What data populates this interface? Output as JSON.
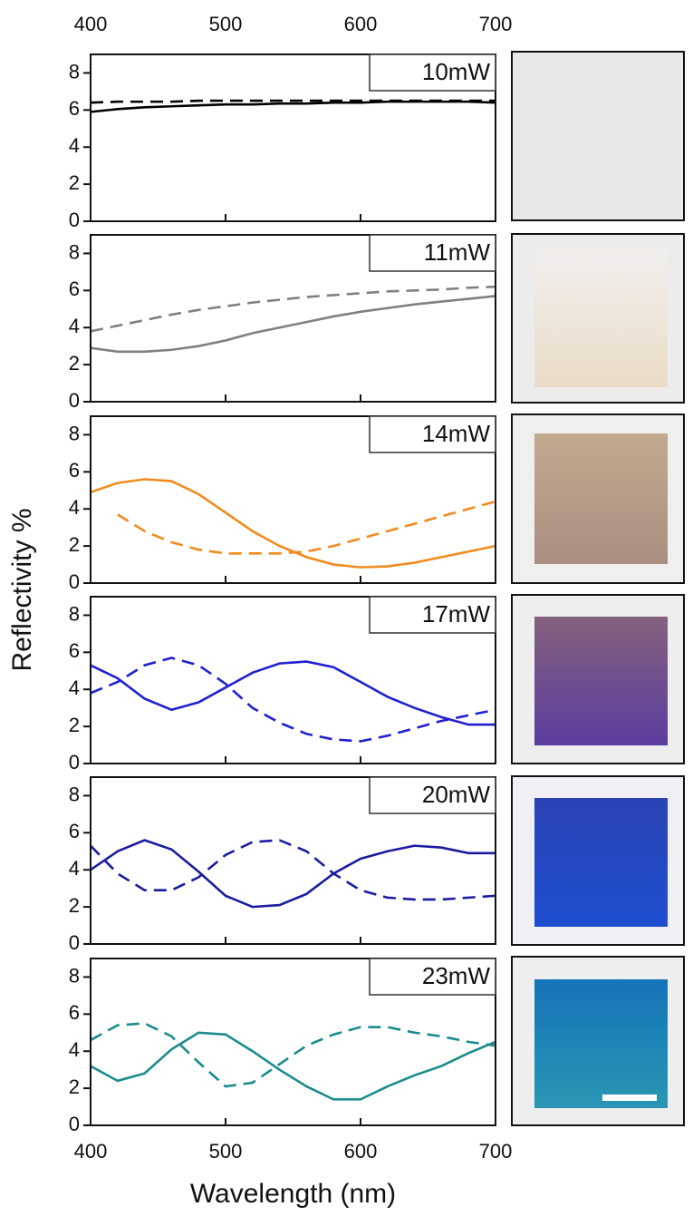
{
  "chart_data": [
    {
      "type": "line",
      "title": "10mW",
      "x": [
        400,
        420,
        440,
        460,
        480,
        500,
        520,
        540,
        560,
        580,
        600,
        620,
        640,
        660,
        680,
        700
      ],
      "series": [
        {
          "color": "#000000",
          "style": "solid",
          "values": [
            5.9,
            6.05,
            6.15,
            6.2,
            6.25,
            6.3,
            6.3,
            6.35,
            6.35,
            6.4,
            6.4,
            6.45,
            6.45,
            6.45,
            6.45,
            6.4
          ]
        },
        {
          "color": "#000000",
          "style": "dashed",
          "values": [
            6.4,
            6.45,
            6.45,
            6.45,
            6.5,
            6.5,
            6.5,
            6.5,
            6.5,
            6.5,
            6.5,
            6.5,
            6.5,
            6.5,
            6.5,
            6.5
          ]
        }
      ],
      "xlim": [
        400,
        700
      ],
      "xticks": [
        400,
        500,
        600,
        700
      ],
      "ylim": [
        0,
        9
      ],
      "yticks": [
        0,
        2,
        4,
        6,
        8
      ]
    },
    {
      "type": "line",
      "title": "11mW",
      "x": [
        400,
        420,
        440,
        460,
        480,
        500,
        520,
        540,
        560,
        580,
        600,
        620,
        640,
        660,
        680,
        700
      ],
      "series": [
        {
          "color": "#808080",
          "style": "solid",
          "values": [
            2.9,
            2.7,
            2.7,
            2.8,
            3.0,
            3.3,
            3.7,
            4.0,
            4.3,
            4.6,
            4.85,
            5.05,
            5.25,
            5.4,
            5.55,
            5.7
          ]
        },
        {
          "color": "#808080",
          "style": "dashed",
          "values": [
            3.8,
            4.1,
            4.4,
            4.7,
            4.95,
            5.15,
            5.35,
            5.5,
            5.65,
            5.75,
            5.85,
            5.95,
            6.0,
            6.05,
            6.15,
            6.2
          ]
        }
      ],
      "xlim": [
        400,
        700
      ],
      "xticks": [
        400,
        500,
        600,
        700
      ],
      "ylim": [
        0,
        9
      ],
      "yticks": [
        0,
        2,
        4,
        6,
        8
      ]
    },
    {
      "type": "line",
      "title": "14mW",
      "x": [
        400,
        420,
        440,
        460,
        480,
        500,
        520,
        540,
        560,
        580,
        600,
        620,
        640,
        660,
        680,
        700
      ],
      "series": [
        {
          "color": "#f28a1e",
          "style": "solid",
          "values": [
            4.9,
            5.4,
            5.6,
            5.5,
            4.8,
            3.8,
            2.8,
            2.0,
            1.4,
            1.0,
            0.85,
            0.9,
            1.1,
            1.4,
            1.7,
            2.0
          ]
        },
        {
          "color": "#f28a1e",
          "style": "dashed",
          "values": [
            null,
            3.7,
            2.8,
            2.2,
            1.8,
            1.6,
            1.6,
            1.6,
            1.7,
            2.0,
            2.4,
            2.8,
            3.2,
            3.6,
            4.0,
            4.4
          ]
        }
      ],
      "xlim": [
        400,
        700
      ],
      "xticks": [
        400,
        500,
        600,
        700
      ],
      "ylim": [
        0,
        9
      ],
      "yticks": [
        0,
        2,
        4,
        6,
        8
      ]
    },
    {
      "type": "line",
      "title": "17mW",
      "x": [
        400,
        420,
        440,
        460,
        480,
        500,
        520,
        540,
        560,
        580,
        600,
        620,
        640,
        660,
        680,
        700
      ],
      "series": [
        {
          "color": "#2020d0",
          "style": "solid",
          "values": [
            5.3,
            4.6,
            3.5,
            2.9,
            3.3,
            4.1,
            4.9,
            5.4,
            5.5,
            5.2,
            4.4,
            3.6,
            3.0,
            2.5,
            2.1,
            2.1
          ]
        },
        {
          "color": "#2020d0",
          "style": "dashed",
          "values": [
            3.8,
            4.4,
            5.3,
            5.7,
            5.3,
            4.3,
            3.0,
            2.2,
            1.6,
            1.3,
            1.2,
            1.5,
            1.9,
            2.3,
            2.6,
            2.9
          ]
        }
      ],
      "xlim": [
        400,
        700
      ],
      "xticks": [
        400,
        500,
        600,
        700
      ],
      "ylim": [
        0,
        9
      ],
      "yticks": [
        0,
        2,
        4,
        6,
        8
      ]
    },
    {
      "type": "line",
      "title": "20mW",
      "x": [
        400,
        420,
        440,
        460,
        480,
        500,
        520,
        540,
        560,
        580,
        600,
        620,
        640,
        660,
        680,
        700
      ],
      "series": [
        {
          "color": "#1c1ca0",
          "style": "solid",
          "values": [
            4.0,
            5.0,
            5.6,
            5.1,
            3.9,
            2.6,
            2.0,
            2.1,
            2.7,
            3.8,
            4.6,
            5.0,
            5.3,
            5.2,
            4.9,
            4.9
          ]
        },
        {
          "color": "#1c1ca0",
          "style": "dashed",
          "values": [
            5.3,
            3.8,
            2.9,
            2.9,
            3.6,
            4.8,
            5.5,
            5.6,
            5.0,
            3.8,
            2.9,
            2.5,
            2.4,
            2.4,
            2.5,
            2.6
          ]
        }
      ],
      "xlim": [
        400,
        700
      ],
      "xticks": [
        400,
        500,
        600,
        700
      ],
      "ylim": [
        0,
        9
      ],
      "yticks": [
        0,
        2,
        4,
        6,
        8
      ]
    },
    {
      "type": "line",
      "title": "23mW",
      "x": [
        400,
        420,
        440,
        460,
        480,
        500,
        520,
        540,
        560,
        580,
        600,
        620,
        640,
        660,
        680,
        700
      ],
      "series": [
        {
          "color": "#1a8c8c",
          "style": "solid",
          "values": [
            3.2,
            2.4,
            2.8,
            4.1,
            5.0,
            4.9,
            4.0,
            3.0,
            2.1,
            1.4,
            1.4,
            2.1,
            2.7,
            3.2,
            3.9,
            4.5
          ]
        },
        {
          "color": "#1a8c8c",
          "style": "dashed",
          "values": [
            4.6,
            5.4,
            5.5,
            4.8,
            3.4,
            2.1,
            2.3,
            3.3,
            4.3,
            4.9,
            5.3,
            5.3,
            5.0,
            4.8,
            4.5,
            4.3
          ]
        }
      ],
      "xlim": [
        400,
        700
      ],
      "xticks": [
        400,
        500,
        600,
        700
      ],
      "ylim": [
        0,
        9
      ],
      "yticks": [
        0,
        2,
        4,
        6,
        8
      ],
      "xlabel": "Wavelength (nm)",
      "ylabel": "Reflectivity %"
    }
  ]
}
